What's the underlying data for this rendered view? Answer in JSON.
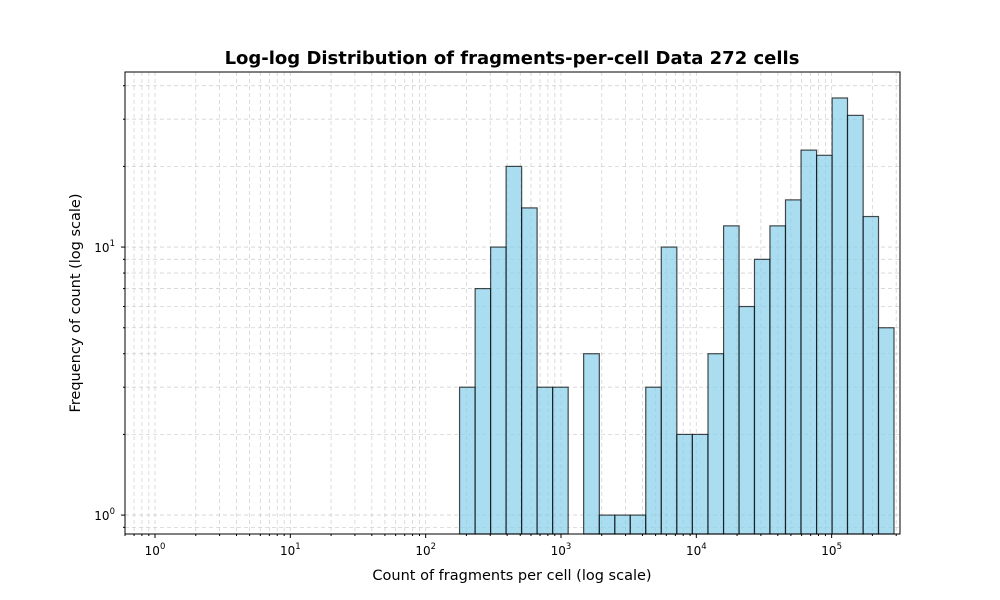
{
  "chart_data": {
    "type": "bar",
    "title": "Log-log Distribution of fragments-per-cell Data 272 cells",
    "xlabel": "Count of fragments per cell (log scale)",
    "ylabel": "Frequency of count (log scale)",
    "xscale": "log",
    "yscale": "log",
    "xlim": [
      0.6,
      320000
    ],
    "ylim": [
      0.85,
      45
    ],
    "grid": true,
    "bar_color": "#87CEEB",
    "edge_color": "#000000",
    "x_ticks": [
      {
        "base": "10",
        "exp": "0",
        "value": 1
      },
      {
        "base": "10",
        "exp": "1",
        "value": 10
      },
      {
        "base": "10",
        "exp": "2",
        "value": 100
      },
      {
        "base": "10",
        "exp": "3",
        "value": 1000
      },
      {
        "base": "10",
        "exp": "4",
        "value": 10000
      },
      {
        "base": "10",
        "exp": "5",
        "value": 100000
      }
    ],
    "y_ticks": [
      {
        "base": "10",
        "exp": "0",
        "value": 1
      },
      {
        "base": "10",
        "exp": "1",
        "value": 10
      }
    ],
    "bins": [
      {
        "left": 178,
        "right": 232,
        "count": 3
      },
      {
        "left": 232,
        "right": 302,
        "count": 7
      },
      {
        "left": 302,
        "right": 393,
        "count": 10
      },
      {
        "left": 393,
        "right": 512,
        "count": 20
      },
      {
        "left": 512,
        "right": 666,
        "count": 14
      },
      {
        "left": 666,
        "right": 868,
        "count": 3
      },
      {
        "left": 868,
        "right": 1130,
        "count": 3
      },
      {
        "left": 1130,
        "right": 1470,
        "count": 0
      },
      {
        "left": 1470,
        "right": 1920,
        "count": 4
      },
      {
        "left": 1920,
        "right": 2500,
        "count": 1
      },
      {
        "left": 2500,
        "right": 3250,
        "count": 1
      },
      {
        "left": 3250,
        "right": 4230,
        "count": 1
      },
      {
        "left": 4230,
        "right": 5510,
        "count": 3
      },
      {
        "left": 5510,
        "right": 7180,
        "count": 10
      },
      {
        "left": 7180,
        "right": 9350,
        "count": 2
      },
      {
        "left": 9350,
        "right": 12200,
        "count": 2
      },
      {
        "left": 12200,
        "right": 15900,
        "count": 4
      },
      {
        "left": 15900,
        "right": 20700,
        "count": 12
      },
      {
        "left": 20700,
        "right": 26900,
        "count": 6
      },
      {
        "left": 26900,
        "right": 35000,
        "count": 9
      },
      {
        "left": 35000,
        "right": 45600,
        "count": 12
      },
      {
        "left": 45600,
        "right": 59400,
        "count": 15
      },
      {
        "left": 59400,
        "right": 77400,
        "count": 23
      },
      {
        "left": 77400,
        "right": 100800,
        "count": 22
      },
      {
        "left": 100800,
        "right": 131000,
        "count": 36
      },
      {
        "left": 131000,
        "right": 171000,
        "count": 31
      },
      {
        "left": 171000,
        "right": 222000,
        "count": 13
      },
      {
        "left": 222000,
        "right": 289000,
        "count": 5
      }
    ]
  }
}
